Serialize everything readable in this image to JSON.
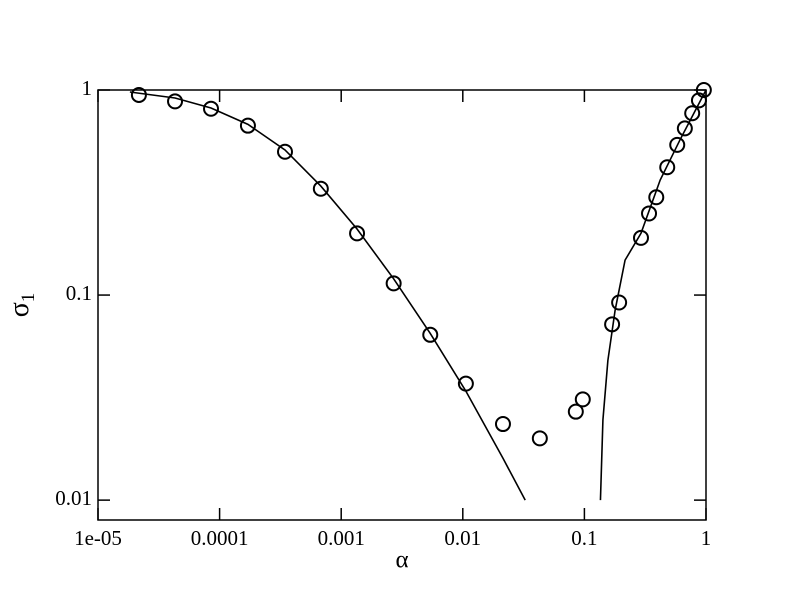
{
  "chart_data": {
    "type": "line",
    "xlabel": "α",
    "ylabel": {
      "text": "σ",
      "subscript": "1"
    },
    "xscale": "log",
    "yscale": "log",
    "xlim": [
      1e-05,
      1
    ],
    "ylim": [
      0.008,
      1
    ],
    "xticks": [
      {
        "value": 1e-05,
        "label": "1e-05"
      },
      0.0001,
      0.001,
      0.01,
      0.1,
      1
    ],
    "yticks": [
      0.01,
      0.1,
      1
    ],
    "series": [
      {
        "mode": "markers",
        "color": "#000000",
        "x": [
          2.17e-05,
          4.3e-05,
          8.5e-05,
          0.000171,
          0.000345,
          0.00068,
          0.00135,
          0.0027,
          0.0054,
          0.0106,
          0.0214,
          0.043,
          0.085,
          0.097,
          0.169,
          0.193,
          0.292,
          0.34,
          0.39,
          0.48,
          0.58,
          0.67,
          0.77,
          0.875,
          0.96
        ],
        "values": [
          0.946,
          0.88,
          0.81,
          0.67,
          0.5,
          0.33,
          0.2,
          0.114,
          0.064,
          0.037,
          0.0235,
          0.02,
          0.027,
          0.031,
          0.072,
          0.092,
          0.19,
          0.25,
          0.3,
          0.42,
          0.54,
          0.65,
          0.77,
          0.89,
          1.0
        ]
      },
      {
        "mode": "line",
        "color": "#000000",
        "x": [
          1.83e-05,
          4.3e-05,
          8.5e-05,
          0.000171,
          0.000345,
          0.00068,
          0.00135,
          0.0027,
          0.0054,
          0.0106,
          0.0214,
          0.0326
        ],
        "values": [
          0.978,
          0.914,
          0.817,
          0.68,
          0.51,
          0.34,
          0.21,
          0.12,
          0.065,
          0.034,
          0.016,
          0.01
        ]
      },
      {
        "mode": "line",
        "color": "#000000",
        "x": [
          0.1355,
          0.142,
          0.156,
          0.179,
          0.216,
          0.292,
          0.42,
          0.61,
          1.0
        ],
        "values": [
          0.01,
          0.0246,
          0.048,
          0.0845,
          0.148,
          0.2,
          0.364,
          0.57,
          1.0
        ]
      }
    ]
  }
}
